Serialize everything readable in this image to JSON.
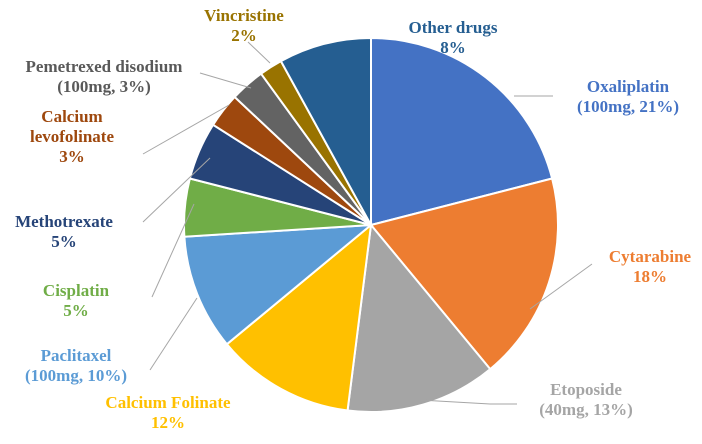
{
  "chart_data": {
    "type": "pie",
    "title": "",
    "slices": [
      {
        "name": "Oxaliplatin",
        "value": 21,
        "label_lines": [
          "Oxaliplatin",
          "(100mg, 21%)"
        ],
        "color": "#4472C4",
        "text_color": "#4472C4"
      },
      {
        "name": "Cytarabine",
        "value": 18,
        "label_lines": [
          "Cytarabine",
          "18%"
        ],
        "color": "#ED7D31",
        "text_color": "#ED7D31"
      },
      {
        "name": "Etoposide",
        "value": 13,
        "label_lines": [
          "Etoposide",
          "(40mg, 13%)"
        ],
        "color": "#A5A5A5",
        "text_color": "#A5A5A5"
      },
      {
        "name": "Calcium Folinate",
        "value": 12,
        "label_lines": [
          "Calcium Folinate",
          "12%"
        ],
        "color": "#FFC000",
        "text_color": "#FFC000"
      },
      {
        "name": "Paclitaxel",
        "value": 10,
        "label_lines": [
          "Paclitaxel",
          "(100mg, 10%)"
        ],
        "color": "#5B9BD5",
        "text_color": "#5B9BD5"
      },
      {
        "name": "Cisplatin",
        "value": 5,
        "label_lines": [
          "Cisplatin",
          "5%"
        ],
        "color": "#70AD47",
        "text_color": "#70AD47"
      },
      {
        "name": "Methotrexate",
        "value": 5,
        "label_lines": [
          "Methotrexate",
          "5%"
        ],
        "color": "#264478",
        "text_color": "#264478"
      },
      {
        "name": "Calcium levofolinate",
        "value": 3,
        "label_lines": [
          "Calcium",
          "levofolinate",
          "3%"
        ],
        "color": "#9E480E",
        "text_color": "#9E480E"
      },
      {
        "name": "Pemetrexed disodium",
        "value": 3,
        "label_lines": [
          "Pemetrexed disodium",
          "(100mg, 3%)"
        ],
        "color": "#636363",
        "text_color": "#595959"
      },
      {
        "name": "Vincristine",
        "value": 2,
        "label_lines": [
          "Vincristine",
          "2%"
        ],
        "color": "#997300",
        "text_color": "#997300"
      },
      {
        "name": "Other drugs",
        "value": 8,
        "label_lines": [
          "Other drugs",
          "8%"
        ],
        "color": "#255E91",
        "text_color": "#255E91"
      }
    ],
    "leader_line_color": "#A6A6A6",
    "slice_border_color": "#FFFFFF"
  }
}
